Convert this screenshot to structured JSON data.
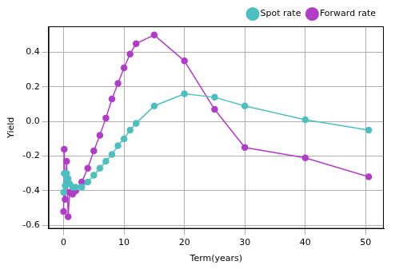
{
  "chart_data": {
    "type": "line",
    "x_label": "Term(years)",
    "y_label": "Yield",
    "x": [
      0,
      0.1,
      0.25,
      0.5,
      0.75,
      1,
      1.5,
      2,
      3,
      4,
      5,
      6,
      7,
      8,
      9,
      10,
      11,
      12,
      15,
      20,
      25,
      30,
      40,
      50.5
    ],
    "series": [
      {
        "name": "Spot rate",
        "color": "#4dbfbf",
        "marker": "circle",
        "values": [
          -0.41,
          -0.3,
          -0.37,
          -0.3,
          -0.33,
          -0.36,
          -0.38,
          -0.38,
          -0.38,
          -0.35,
          -0.31,
          -0.27,
          -0.23,
          -0.19,
          -0.14,
          -0.1,
          -0.05,
          -0.01,
          0.09,
          0.16,
          0.14,
          0.09,
          0.01,
          -0.05
        ]
      },
      {
        "name": "Forward rate",
        "color": "#b03cc8",
        "marker": "circle",
        "values": [
          -0.52,
          -0.16,
          -0.45,
          -0.23,
          -0.55,
          -0.41,
          -0.42,
          -0.4,
          -0.35,
          -0.27,
          -0.17,
          -0.08,
          0.02,
          0.13,
          0.22,
          0.31,
          0.39,
          0.45,
          0.5,
          0.35,
          0.07,
          -0.15,
          -0.21,
          -0.32
        ]
      }
    ],
    "xlim": [
      -2.5,
      53
    ],
    "xticks": [
      0,
      10,
      20,
      30,
      40,
      50
    ],
    "ylim": [
      -0.62,
      0.55
    ],
    "yticks": [
      -0.6,
      -0.4,
      -0.2,
      {
        "value": 0,
        "label": "0.0"
      },
      0.2,
      0.4
    ],
    "grid": true,
    "legend": "upper right"
  }
}
